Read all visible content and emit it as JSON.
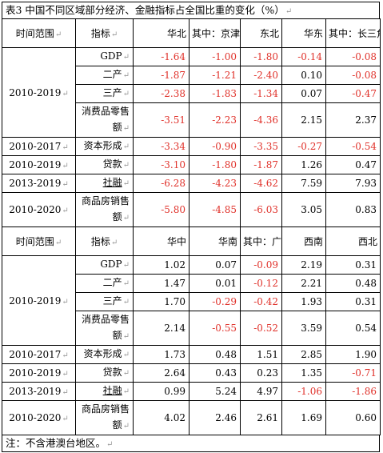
{
  "title": "表3 中国不同区域部分经济、金融指标占全国比重的变化（%）",
  "para_mark": "↵",
  "section1": {
    "headers": [
      "时间范围",
      "指标",
      "华北",
      "其中：京津冀",
      "东北",
      "华东",
      "其中：长三角"
    ],
    "rows": [
      {
        "range": "2010-2019",
        "indicator": "GDP",
        "values": [
          "-1.64",
          "-1.00",
          "-1.80",
          "-0.14",
          "-0.08"
        ]
      },
      {
        "range": "",
        "indicator": "二产",
        "values": [
          "-1.87",
          "-1.21",
          "-2.40",
          "0.10",
          "-0.08"
        ]
      },
      {
        "range": "",
        "indicator": "三产",
        "values": [
          "-2.38",
          "-1.83",
          "-1.34",
          "0.07",
          "-0.47"
        ]
      },
      {
        "range": "",
        "indicator": "消费品零售额",
        "values": [
          "-3.51",
          "-2.23",
          "-4.36",
          "2.15",
          "2.37"
        ]
      },
      {
        "range": "2010-2017",
        "indicator": "资本形成",
        "values": [
          "-3.34",
          "-0.90",
          "-3.35",
          "-0.27",
          "-0.54"
        ]
      },
      {
        "range": "2010-2019",
        "indicator": "贷款",
        "values": [
          "-3.10",
          "-1.80",
          "-1.87",
          "1.26",
          "0.47"
        ]
      },
      {
        "range": "2013-2019",
        "indicator": "社融",
        "values": [
          "-6.28",
          "-4.23",
          "-4.62",
          "7.59",
          "7.93"
        ]
      },
      {
        "range": "2010-2020",
        "indicator": "商品房销售额",
        "values": [
          "-5.80",
          "-4.85",
          "-6.03",
          "3.05",
          "0.83"
        ]
      }
    ]
  },
  "section2": {
    "headers": [
      "时间范围",
      "指标",
      "华中",
      "华南",
      "其中：广东",
      "西南",
      "西北"
    ],
    "rows": [
      {
        "range": "2010-2019",
        "indicator": "GDP",
        "values": [
          "1.02",
          "0.07",
          "-0.09",
          "2.19",
          "0.31"
        ]
      },
      {
        "range": "",
        "indicator": "二产",
        "values": [
          "1.47",
          "0.01",
          "-0.12",
          "2.21",
          "0.48"
        ]
      },
      {
        "range": "",
        "indicator": "三产",
        "values": [
          "1.70",
          "-0.29",
          "-0.42",
          "1.93",
          "0.31"
        ]
      },
      {
        "range": "",
        "indicator": "消费品零售额",
        "values": [
          "2.14",
          "-0.55",
          "-0.52",
          "3.59",
          "0.54"
        ]
      },
      {
        "range": "2010-2017",
        "indicator": "资本形成",
        "values": [
          "1.73",
          "0.48",
          "1.51",
          "2.85",
          "1.90"
        ]
      },
      {
        "range": "2010-2019",
        "indicator": "贷款",
        "values": [
          "2.64",
          "0.43",
          "0.23",
          "1.35",
          "-0.71"
        ]
      },
      {
        "range": "2013-2019",
        "indicator": "社融",
        "values": [
          "0.99",
          "5.24",
          "4.97",
          "-1.06",
          "-1.86"
        ]
      },
      {
        "range": "2010-2020",
        "indicator": "商品房销售额",
        "values": [
          "4.02",
          "2.46",
          "2.61",
          "1.69",
          "0.60"
        ]
      }
    ]
  },
  "note": "注：不含港澳台地区。",
  "colors": {
    "negative": "#e0312a",
    "text": "#000000",
    "border": "#000000",
    "paragraph_mark": "#9a9a9a"
  }
}
